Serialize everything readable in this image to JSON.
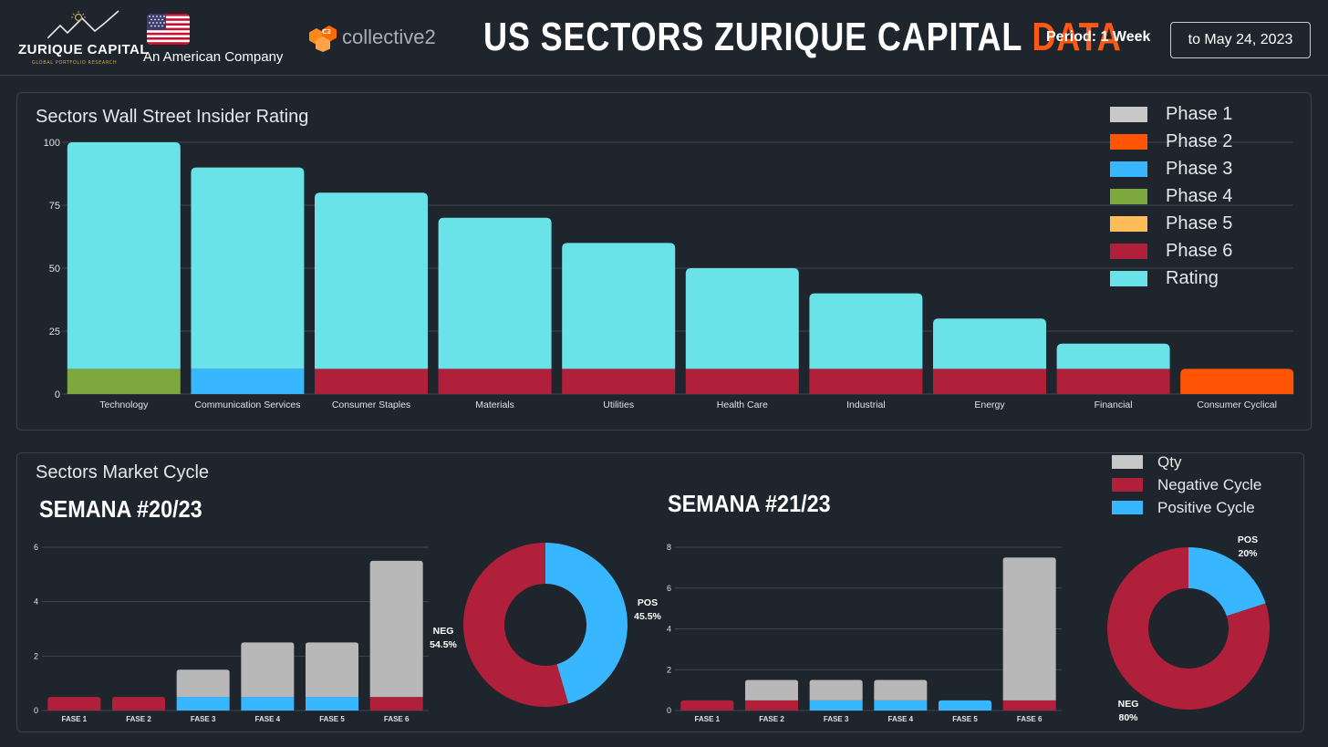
{
  "header": {
    "logo": {
      "name": "ZURIQUE CAPITAL",
      "subtitle": "GLOBAL PORTFOLIO RESEARCH"
    },
    "tagline": "An American Company",
    "partner": {
      "name": "collective2",
      "badge": "C2"
    },
    "title": {
      "main": "US SECTORS ZURIQUE CAPITAL",
      "accent": "DATA"
    },
    "period_label": "Period: 1 Week",
    "date_range": "to May 24, 2023"
  },
  "colors": {
    "phase1": "#c8c8c8",
    "phase2": "#ff5505",
    "phase3": "#38b6ff",
    "phase4": "#7ca83e",
    "phase5": "#ffbd59",
    "phase6": "#b0203a",
    "rating": "#6ae3e8",
    "qty": "#b8b8b8",
    "negative": "#b0203a",
    "positive": "#38b6ff",
    "accent": "#ff5a14"
  },
  "rating_chart": {
    "title": "Sectors Wall Street Insider Rating",
    "legend": [
      {
        "label": "Phase 1",
        "color": "#c8c8c8"
      },
      {
        "label": "Phase 2",
        "color": "#ff5505"
      },
      {
        "label": "Phase 3",
        "color": "#38b6ff"
      },
      {
        "label": "Phase 4",
        "color": "#7ca83e"
      },
      {
        "label": "Phase 5",
        "color": "#ffbd59"
      },
      {
        "label": "Phase 6",
        "color": "#b0203a"
      },
      {
        "label": "Rating",
        "color": "#6ae3e8"
      }
    ]
  },
  "cycle_panel": {
    "title": "Sectors Market Cycle",
    "legend": [
      {
        "label": "Qty",
        "color": "#c8c8c8"
      },
      {
        "label": "Negative Cycle",
        "color": "#b0203a"
      },
      {
        "label": "Positive Cycle",
        "color": "#38b6ff"
      }
    ],
    "week1_title": "SEMANA #20/23",
    "week2_title": "SEMANA #21/23"
  },
  "chart_data": [
    {
      "type": "bar",
      "stacked": true,
      "title": "Sectors Wall Street Insider Rating",
      "categories": [
        "Technology",
        "Communication Services",
        "Consumer Staples",
        "Materials",
        "Utilities",
        "Health Care",
        "Industrial",
        "Energy",
        "Financial",
        "Consumer Cyclical"
      ],
      "phase_values": [
        10,
        10,
        10,
        10,
        10,
        10,
        10,
        10,
        10,
        10
      ],
      "phase_labels": [
        "Phase 4",
        "Phase 3",
        "Phase 6",
        "Phase 6",
        "Phase 6",
        "Phase 6",
        "Phase 6",
        "Phase 6",
        "Phase 6",
        "Phase 2"
      ],
      "rating_values": [
        90,
        80,
        70,
        60,
        50,
        40,
        30,
        20,
        10,
        0
      ],
      "totals": [
        100,
        90,
        80,
        70,
        60,
        50,
        40,
        30,
        20,
        10
      ],
      "ylim": [
        0,
        100
      ],
      "yticks": [
        0,
        25,
        50,
        75,
        100
      ],
      "grid": true,
      "legend_position": "top-right"
    },
    {
      "type": "bar",
      "stacked": true,
      "title": "SEMANA #20/23",
      "categories": [
        "FASE 1",
        "FASE 2",
        "FASE 3",
        "FASE 4",
        "FASE 5",
        "FASE 6"
      ],
      "cycle_values": [
        0.5,
        0.5,
        0.5,
        0.5,
        0.5,
        0.5
      ],
      "cycle_signs": [
        "negative",
        "negative",
        "positive",
        "positive",
        "positive",
        "negative"
      ],
      "qty_values": [
        0,
        0,
        1,
        2,
        2,
        5
      ],
      "ylim": [
        0,
        6
      ],
      "yticks": [
        0,
        2,
        4,
        6
      ]
    },
    {
      "type": "pie",
      "donut": true,
      "title": "SEMANA #20/23",
      "slices": [
        {
          "label": "POS",
          "value": 45.5,
          "text": "45.5%"
        },
        {
          "label": "NEG",
          "value": 54.5,
          "text": "54.5%"
        }
      ]
    },
    {
      "type": "bar",
      "stacked": true,
      "title": "SEMANA #21/23",
      "categories": [
        "FASE 1",
        "FASE 2",
        "FASE 3",
        "FASE 4",
        "FASE 5",
        "FASE 6"
      ],
      "cycle_values": [
        0.5,
        0.5,
        0.5,
        0.5,
        0.5,
        0.5
      ],
      "cycle_signs": [
        "negative",
        "negative",
        "positive",
        "positive",
        "positive",
        "negative"
      ],
      "qty_values": [
        0,
        1,
        1,
        1,
        0,
        7
      ],
      "ylim": [
        0,
        8
      ],
      "yticks": [
        0,
        2,
        4,
        6,
        8
      ]
    },
    {
      "type": "pie",
      "donut": true,
      "title": "SEMANA #21/23",
      "slices": [
        {
          "label": "POS",
          "value": 20,
          "text": "20%"
        },
        {
          "label": "NEG",
          "value": 80,
          "text": "80%"
        }
      ]
    }
  ]
}
